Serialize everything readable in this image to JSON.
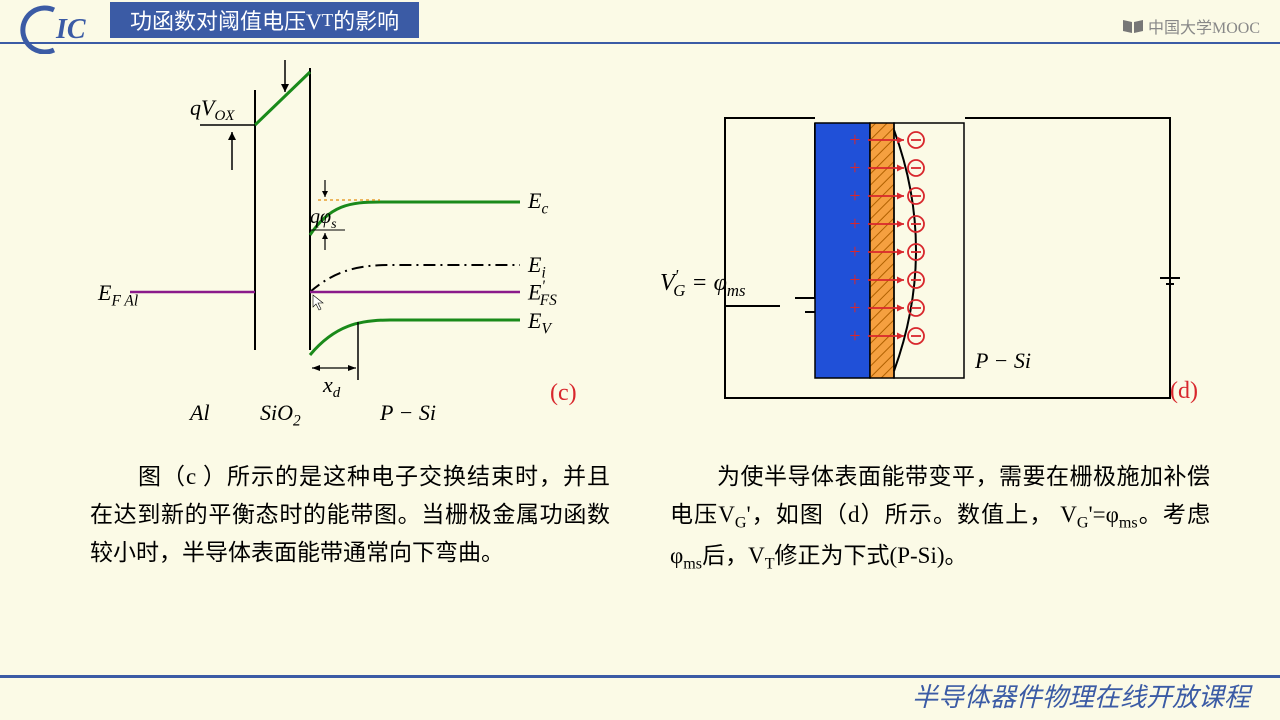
{
  "colors": {
    "page_bg": "#fbfae6",
    "header_badge": "#3b5ba5",
    "header_text": "#ffffff",
    "rule_blue": "#3b5ba5",
    "logo_blue": "#3b5ba5",
    "footer_blue": "#3b5ba5",
    "black": "#000000",
    "green": "#1a8a1a",
    "red": "#d8272d",
    "purple": "#8a1a8a",
    "orange_dash": "#e8a030",
    "cap_blue": "#2050d8",
    "cap_orange": "#f5a040",
    "mooc_gray": "#777777"
  },
  "header": {
    "title_prefix": "功函数对阈值电压V",
    "title_sub": "T",
    "title_suffix": "的影响",
    "mooc_text": "中国大学MOOC",
    "logo_letters": "IC"
  },
  "footer": {
    "text": "半导体器件物理在线开放课程"
  },
  "fig_c": {
    "labels": {
      "qVox": "qV",
      "qVox_sub": "OX",
      "qphis": "qφ",
      "qphis_sub": "s",
      "EFAl": "E",
      "EFAl_sub": "F Al",
      "Ec": "E",
      "Ec_sub": "c",
      "Ei": "E",
      "Ei_sub": "i",
      "EFS_prime": "E",
      "EFS_sub": "FS",
      "EV": "E",
      "EV_sub": "V",
      "xd": "x",
      "xd_sub": "d",
      "Al": "Al",
      "SiO2": "SiO",
      "SiO2_sub": "2",
      "PSi": "P − Si",
      "tag": "(c)"
    },
    "line_width_thick": 3,
    "line_width_thin": 2
  },
  "fig_d": {
    "labels": {
      "VG_eq": "V",
      "VG_sub": "G",
      "eq_sign": " = ",
      "phi_ms": "φ",
      "phi_ms_sub": "ms",
      "PSi": "P − Si",
      "tag": "(d)"
    },
    "n_rows": 8
  },
  "text_c": "　　图（c ）所示的是这种电子交换结束时，并且在达到新的平衡态时的能带图。当栅极金属功函数较小时，半导体表面能带通常向下弯曲。",
  "text_d_prefix": "　　为使半导体表面能带变平，需要在栅极施加补偿电压V",
  "text_d_sub1": "G",
  "text_d_mid1": "'，如图（d）所示。数值上， V",
  "text_d_sub2": "G",
  "text_d_mid2": "'=φ",
  "text_d_sub3": "ms",
  "text_d_mid3": "。考虑φ",
  "text_d_sub4": "ms",
  "text_d_mid4": "后，V",
  "text_d_sub5": "T",
  "text_d_suffix": "修正为下式(P-Si)。"
}
